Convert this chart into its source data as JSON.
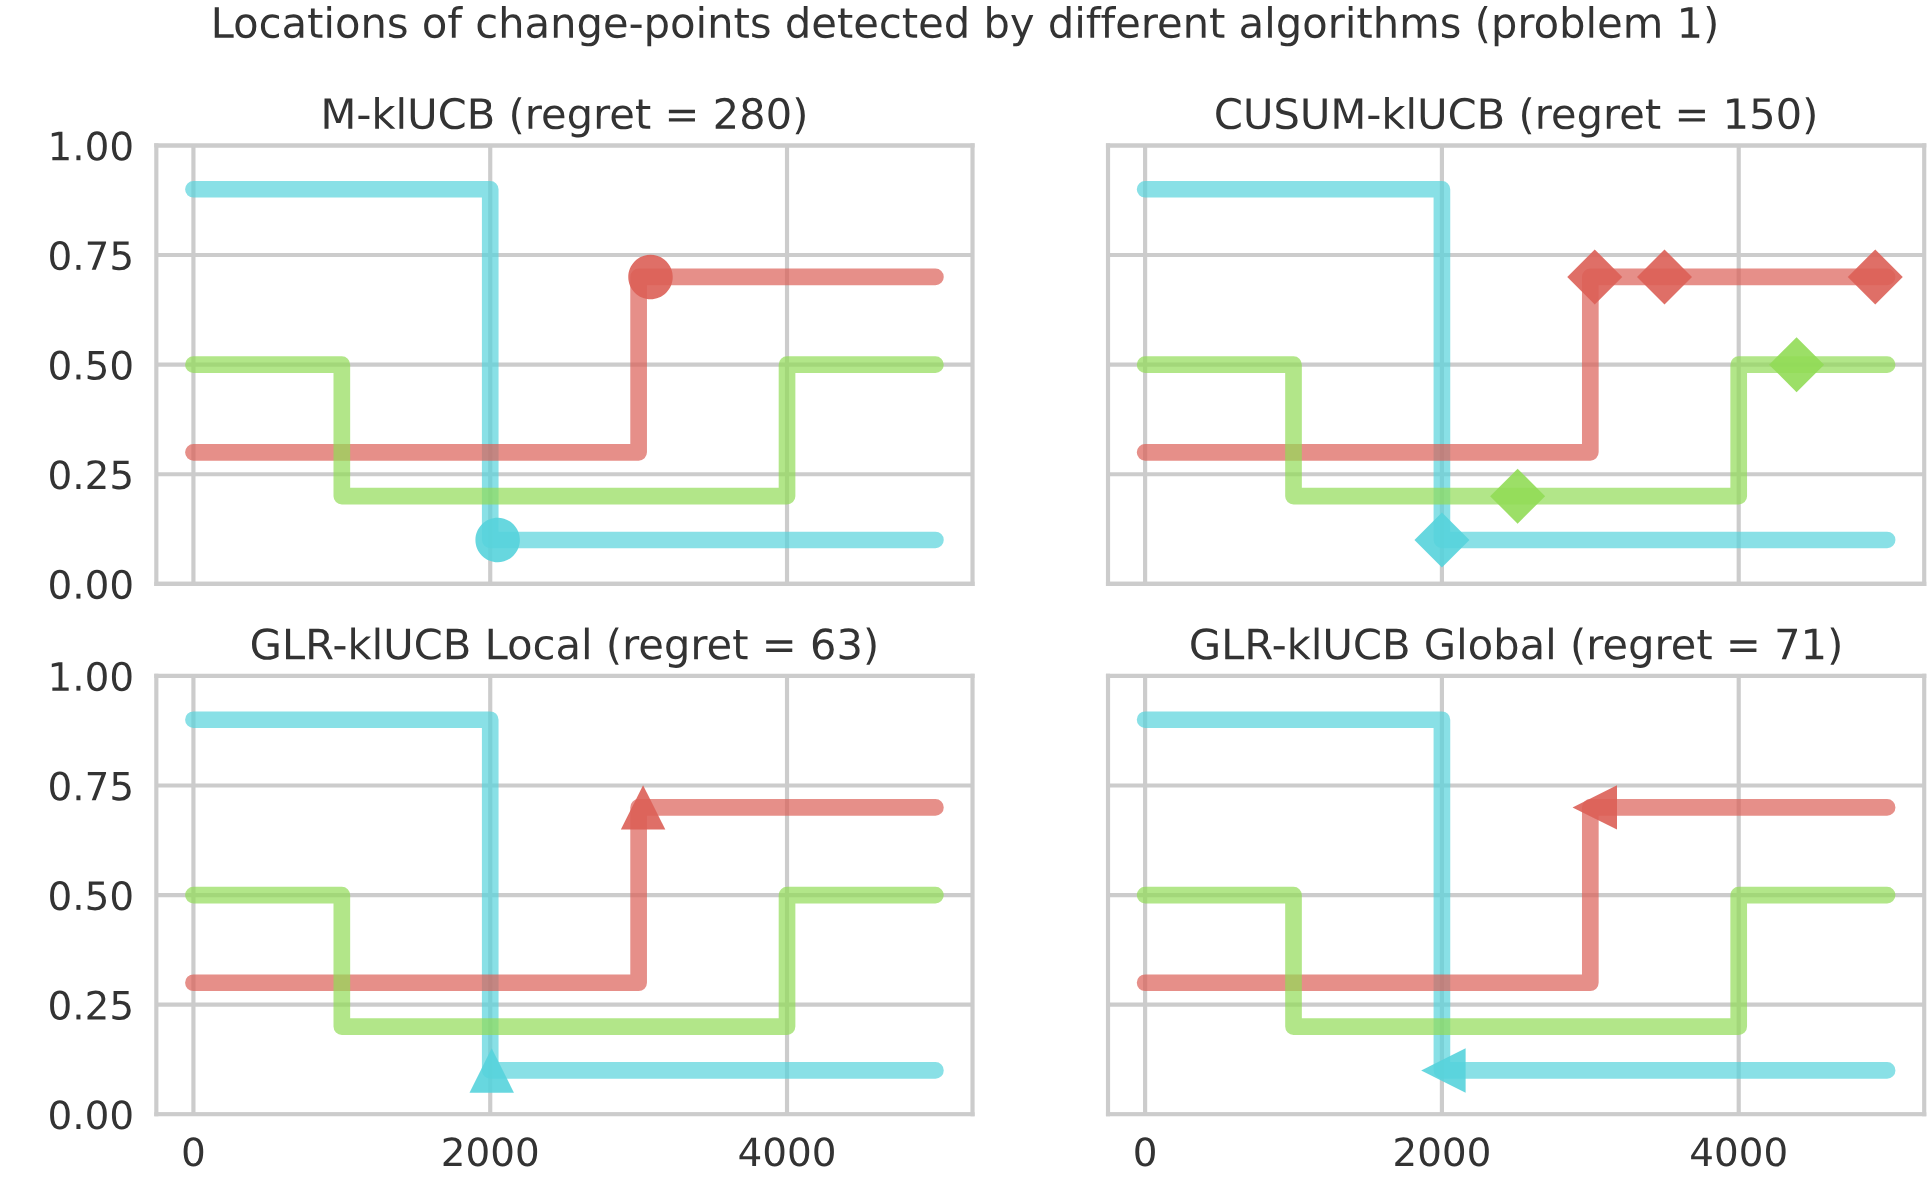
{
  "chart_data": [
    {
      "type": "step",
      "title": "M-klUCB (regret = 280)",
      "annotations": [
        "Locations of change-points detected by different algorithms (problem 1)"
      ],
      "xlim": [
        -250,
        5250
      ],
      "ylim": [
        0,
        1
      ],
      "xticks": [
        0,
        2000,
        4000
      ],
      "yticks": [
        {
          "value": 0,
          "label": "0.00"
        },
        {
          "value": 0.25,
          "label": "0.25"
        },
        {
          "value": 0.5,
          "label": "0.50"
        },
        {
          "value": 0.75,
          "label": "0.75"
        },
        {
          "value": 1,
          "label": "1.00"
        }
      ],
      "grid": true,
      "tick_labels": "y",
      "series": [
        {
          "color": "#57d3db",
          "x": [
            0,
            2000,
            5000
          ],
          "values": [
            0.9,
            0.1,
            0.1
          ]
        },
        {
          "color": "#db5f57",
          "x": [
            0,
            3000,
            5000
          ],
          "values": [
            0.3,
            0.7,
            0.7
          ]
        },
        {
          "color": "#91db57",
          "x": [
            0,
            1000,
            4000,
            5000
          ],
          "values": [
            0.5,
            0.2,
            0.5,
            0.5
          ]
        },
        {
          "type": "scatter",
          "marker": "circle",
          "color": "#db5f57",
          "x": [
            3080
          ],
          "values": [
            0.7
          ]
        },
        {
          "type": "scatter",
          "marker": "circle",
          "color": "#57d3db",
          "x": [
            2050
          ],
          "values": [
            0.1
          ]
        }
      ]
    },
    {
      "type": "step",
      "title": "CUSUM-klUCB (regret = 150)",
      "xlim": [
        -250,
        5250
      ],
      "ylim": [
        0,
        1
      ],
      "xticks": [
        0,
        2000,
        4000
      ],
      "yticks": [
        0,
        0.25,
        0.5,
        0.75,
        1
      ],
      "grid": true,
      "tick_labels": false,
      "series": [
        {
          "color": "#57d3db",
          "x": [
            0,
            2000,
            5000
          ],
          "values": [
            0.9,
            0.1,
            0.1
          ]
        },
        {
          "color": "#db5f57",
          "x": [
            0,
            3000,
            5000
          ],
          "values": [
            0.3,
            0.7,
            0.7
          ]
        },
        {
          "color": "#91db57",
          "x": [
            0,
            1000,
            4000,
            5000
          ],
          "values": [
            0.5,
            0.2,
            0.5,
            0.5
          ]
        },
        {
          "type": "scatter",
          "marker": "diamond",
          "color": "#db5f57",
          "x": [
            3030,
            3500,
            4920
          ],
          "values": [
            0.7,
            0.7,
            0.7
          ]
        },
        {
          "type": "scatter",
          "marker": "diamond",
          "color": "#91db57",
          "x": [
            2510,
            4390
          ],
          "values": [
            0.2,
            0.5
          ]
        },
        {
          "type": "scatter",
          "marker": "diamond",
          "color": "#57d3db",
          "x": [
            2000
          ],
          "values": [
            0.1
          ]
        }
      ]
    },
    {
      "type": "step",
      "title": "GLR-klUCB Local (regret = 63)",
      "xlim": [
        -250,
        5250
      ],
      "ylim": [
        0,
        1
      ],
      "xticks": [
        0,
        2000,
        4000
      ],
      "yticks": [
        {
          "value": 0,
          "label": "0.00"
        },
        {
          "value": 0.25,
          "label": "0.25"
        },
        {
          "value": 0.5,
          "label": "0.50"
        },
        {
          "value": 0.75,
          "label": "0.75"
        },
        {
          "value": 1,
          "label": "1.00"
        }
      ],
      "grid": true,
      "series": [
        {
          "color": "#57d3db",
          "x": [
            0,
            2000,
            5000
          ],
          "values": [
            0.9,
            0.1,
            0.1
          ]
        },
        {
          "color": "#db5f57",
          "x": [
            0,
            3000,
            5000
          ],
          "values": [
            0.3,
            0.7,
            0.7
          ]
        },
        {
          "color": "#91db57",
          "x": [
            0,
            1000,
            4000,
            5000
          ],
          "values": [
            0.5,
            0.2,
            0.5,
            0.5
          ]
        },
        {
          "type": "scatter",
          "marker": "triangle",
          "color": "#db5f57",
          "x": [
            3030
          ],
          "values": [
            0.7
          ]
        },
        {
          "type": "scatter",
          "marker": "triangle",
          "color": "#57d3db",
          "x": [
            2010
          ],
          "values": [
            0.1
          ]
        }
      ]
    },
    {
      "type": "step",
      "title": "GLR-klUCB Global (regret = 71)",
      "xlim": [
        -250,
        5250
      ],
      "ylim": [
        0,
        1
      ],
      "xticks": [
        0,
        2000,
        4000
      ],
      "yticks": [
        0,
        0.25,
        0.5,
        0.75,
        1
      ],
      "grid": true,
      "tick_labels": "x",
      "series": [
        {
          "color": "#57d3db",
          "x": [
            0,
            2000,
            5000
          ],
          "values": [
            0.9,
            0.1,
            0.1
          ]
        },
        {
          "color": "#db5f57",
          "x": [
            0,
            3000,
            5000
          ],
          "values": [
            0.3,
            0.7,
            0.7
          ]
        },
        {
          "color": "#91db57",
          "x": [
            0,
            1000,
            4000,
            5000
          ],
          "values": [
            0.5,
            0.2,
            0.5,
            0.5
          ]
        },
        {
          "type": "scatter",
          "marker": "triangle-left",
          "color": "#db5f57",
          "x": [
            3030
          ],
          "values": [
            0.7
          ]
        },
        {
          "type": "scatter",
          "marker": "triangle-left",
          "color": "#57d3db",
          "x": [
            2010
          ],
          "values": [
            0.1
          ]
        }
      ]
    }
  ]
}
